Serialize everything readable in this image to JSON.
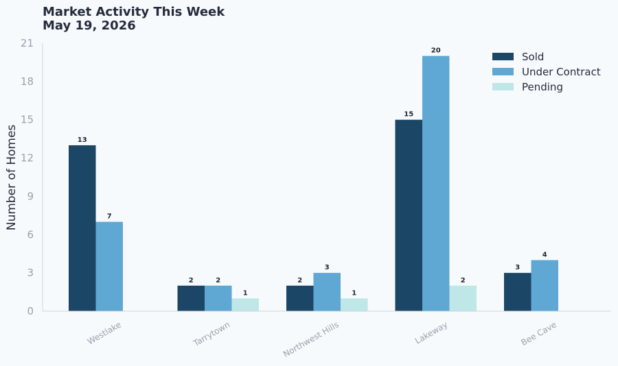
{
  "chart_data": {
    "type": "bar",
    "title": "Market Activity This Week",
    "subtitle": "May 19, 2026",
    "xlabel": "",
    "ylabel": "Number of Homes",
    "ylim": [
      0,
      21
    ],
    "yticks": [
      0,
      3,
      6,
      9,
      12,
      15,
      18,
      21
    ],
    "grid": false,
    "legend_position": "top-right",
    "categories": [
      "Westlake",
      "Tarrytown",
      "Northwest Hills",
      "Lakeway",
      "Bee Cave"
    ],
    "series": [
      {
        "name": "Sold",
        "color": "#1c4666",
        "values": [
          13,
          2,
          2,
          15,
          3
        ]
      },
      {
        "name": "Under Contract",
        "color": "#5fa8d3",
        "values": [
          7,
          2,
          3,
          20,
          4
        ]
      },
      {
        "name": "Pending",
        "color": "#bfe7e8",
        "values": [
          0,
          1,
          1,
          2,
          0
        ]
      }
    ]
  }
}
